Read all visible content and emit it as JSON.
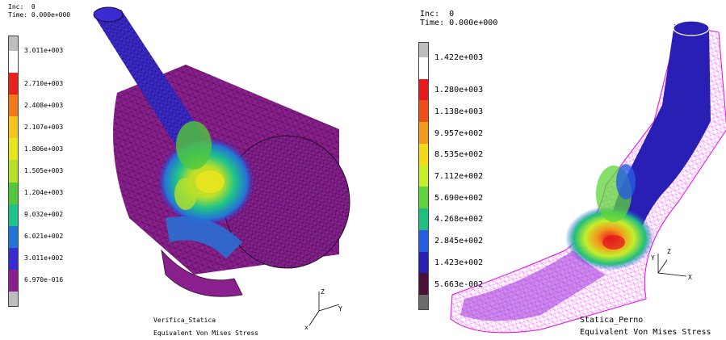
{
  "left": {
    "inc_label": "Inc:",
    "inc_value": "0",
    "time_label": "Time:",
    "time_value": "0.000e+000",
    "legend": [
      {
        "label": "3.011e+003",
        "color": "#ffffff"
      },
      {
        "label": "2.710e+003",
        "color": "#e8221c"
      },
      {
        "label": "2.408e+003",
        "color": "#f07a1a"
      },
      {
        "label": "2.107e+003",
        "color": "#f3c51e"
      },
      {
        "label": "1.806e+003",
        "color": "#e6e620"
      },
      {
        "label": "1.505e+003",
        "color": "#b7e02a"
      },
      {
        "label": "1.204e+003",
        "color": "#52c83a"
      },
      {
        "label": "9.032e+002",
        "color": "#1fc38a"
      },
      {
        "label": "6.021e+002",
        "color": "#2473d6"
      },
      {
        "label": "3.011e+002",
        "color": "#3a2bd0"
      },
      {
        "label": "6.970e-016",
        "color": "#8a1f8e"
      }
    ],
    "caption_name": "Verifica_Statica",
    "caption_result": "Equivalent Von Mises Stress",
    "axes": {
      "x": "x",
      "y": "Y",
      "z": "Z"
    }
  },
  "right": {
    "inc_label": "Inc:",
    "inc_value": "0",
    "time_label": "Time:",
    "time_value": "0.000e+000",
    "legend": [
      {
        "label": "1.422e+003",
        "color": "#ffffff"
      },
      {
        "label": "1.280e+003",
        "color": "#e41a1c"
      },
      {
        "label": "1.138e+003",
        "color": "#f04e17"
      },
      {
        "label": "9.957e+002",
        "color": "#f39a1e"
      },
      {
        "label": "8.535e+002",
        "color": "#f2d91c"
      },
      {
        "label": "7.112e+002",
        "color": "#c6ee2b"
      },
      {
        "label": "5.690e+002",
        "color": "#5fd43a"
      },
      {
        "label": "4.268e+002",
        "color": "#1fbf7d"
      },
      {
        "label": "2.845e+002",
        "color": "#245de0"
      },
      {
        "label": "1.423e+002",
        "color": "#2a1fb5"
      },
      {
        "label": "5.663e-002",
        "color": "#4a1238"
      }
    ],
    "caption_name": "Statica_Perno",
    "caption_result": "Equivalent Von Mises Stress",
    "axes": {
      "x": "X",
      "y": "Y",
      "z": "Z"
    }
  }
}
